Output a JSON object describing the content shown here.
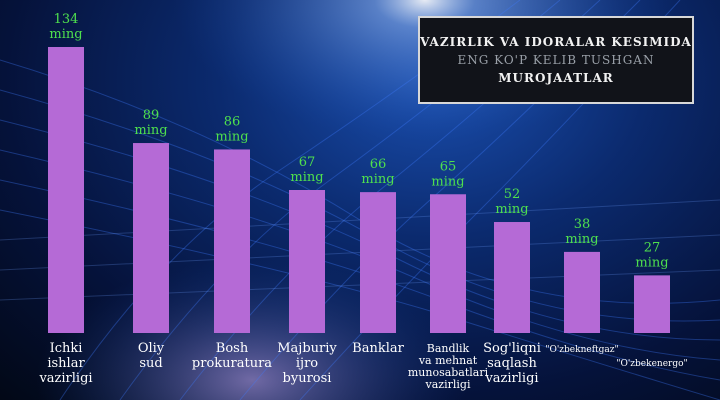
{
  "title_lines": [
    "VAZIRLIK VA IDORALAR KESIMIDA",
    "ENG KO'P KELIB TUSHGAN",
    "MUROJAATLAR"
  ],
  "colors": {
    "bar": "#b56ad6",
    "value_label": "#4ee04e",
    "category_label": "#ffffff",
    "background": "#0b2a6e"
  },
  "chart_data": {
    "type": "bar",
    "title": "VAZIRLIK VA IDORALAR KESIMIDA ENG KO'P KELIB TUSHGAN MUROJAATLAR",
    "unit": "ming",
    "categories": [
      "Ichki ishlar vazirligi",
      "Oliy sud",
      "Bosh prokuratura",
      "Majburiy ijro byurosi",
      "Banklar",
      "Bandlik va mehnat munosabatlari vazirligi",
      "Sog'liqni saqlash vazirligi",
      "\"O'zbekneftgaz\"",
      "\"O'zbekenergo\""
    ],
    "category_lines": [
      [
        "Ichki",
        "ishlar",
        "vazirligi"
      ],
      [
        "Oliy",
        "sud"
      ],
      [
        "Bosh",
        "prokuratura"
      ],
      [
        "Majburiy",
        "ijro",
        "byurosi"
      ],
      [
        "Banklar"
      ],
      [
        "Bandlik",
        "va mehnat",
        "munosabatlari",
        "vazirligi"
      ],
      [
        "Sog'liqni",
        "saqlash",
        "vazirligi"
      ],
      [
        "\"O'zbekneftgaz\""
      ],
      [
        "\"O'zbekenergo\""
      ]
    ],
    "values": [
      134,
      89,
      86,
      67,
      66,
      65,
      52,
      38,
      27
    ],
    "value_labels": [
      "134",
      "89",
      "86",
      "67",
      "66",
      "65",
      "52",
      "38",
      "27"
    ],
    "ylim": [
      0,
      140
    ],
    "xlabel": "",
    "ylabel": "",
    "grid": false,
    "legend": "none"
  }
}
